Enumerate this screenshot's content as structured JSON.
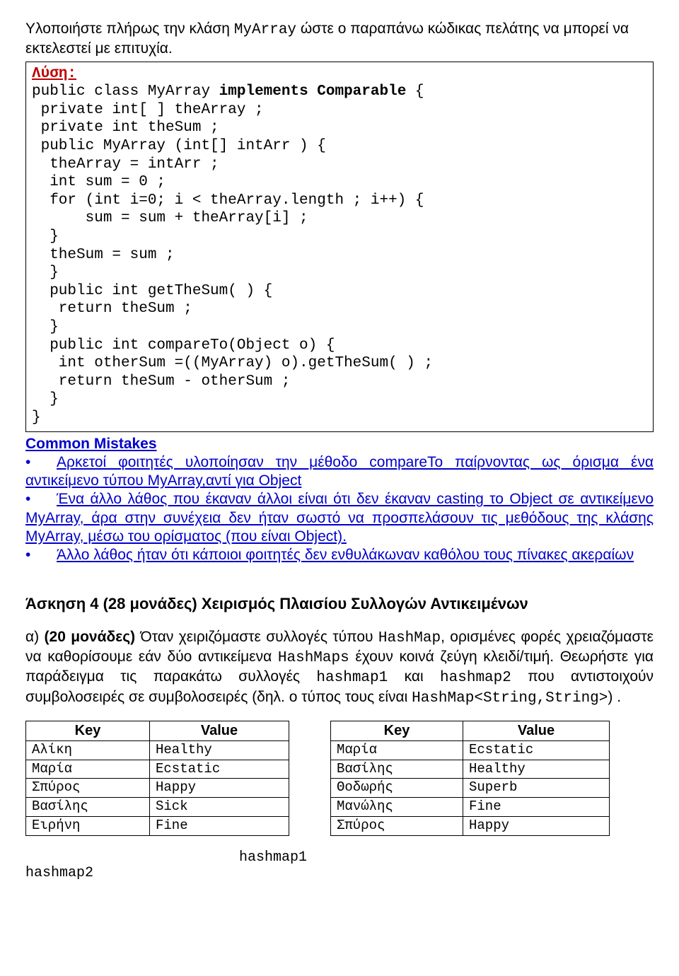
{
  "intro_pre": "Υλοποιήστε πλήρως την κλάση ",
  "intro_class": "MyArray",
  "intro_post": " ώστε ο παραπάνω κώδικας πελάτης να μπορεί να εκτελεστεί με επιτυχία.",
  "lysi": "Λύση:",
  "code_lines": [
    {
      "t": "public class MyArray ",
      "kw": "implements Comparable",
      "rest": " {"
    },
    {
      "t": " private int[ ] theArray ;"
    },
    {
      "t": " private int theSum ;"
    },
    {
      "t": " public MyArray (int[] intArr ) {"
    },
    {
      "t": "  theArray = intArr ;"
    },
    {
      "t": "  int sum = 0 ;"
    },
    {
      "t": "  for (int i=0; i < theArray.length ; i++) {"
    },
    {
      "t": "      sum = sum + theArray[i] ;"
    },
    {
      "t": "  }"
    },
    {
      "t": "  theSum = sum ;"
    },
    {
      "t": "  }"
    },
    {
      "t": "  public int getTheSum( ) {"
    },
    {
      "t": "   return theSum ;"
    },
    {
      "t": "  }"
    },
    {
      "t": "  public int compareTo(Object o) {"
    },
    {
      "t": "   int otherSum =((MyArray) o).getTheSum( ) ;"
    },
    {
      "t": "   return theSum - otherSum ;"
    },
    {
      "t": "  }"
    },
    {
      "t": "}"
    }
  ],
  "mistakes_title": "Common Mistakes",
  "mistakes": [
    "Αρκετοί φοιτητές υλοποίησαν την μέθοδο compareTo παίρνοντας ως όρισμα ένα αντικείμενο τύπου MyArray,αντί για Object",
    "Ένα άλλο λάθος που έκαναν άλλοι είναι ότι δεν έκαναν casting το Object σε αντικείμενο MyArray, άρα στην συνέχεια δεν ήταν σωστό να προσπελάσουν τις μεθόδους της κλάσης MyArray, μέσω του ορίσματος (που είναι Object).",
    "Άλλο λάθος ήταν ότι κάποιοι φοιτητές δεν ενθυλάκωναν καθόλου τους πίνακες ακεραίων"
  ],
  "h4": "Άσκηση 4 (28 μονάδες) Χειρισμός Πλαισίου Συλλογών Αντικειμένων",
  "para_a_pre": "α) ",
  "para_a_bold": "(20 μονάδες)",
  "para_a_1": " Όταν χειριζόμαστε συλλογές τύπου ",
  "para_a_hm": "HashMap",
  "para_a_2": ", ορισμένες φορές χρειαζόμαστε να καθορίσουμε εάν δύο αντικείμενα ",
  "para_a_hms": "HashMaps",
  "para_a_3": " έχουν κοινά ζεύγη κλειδί/τιμή. Θεωρήστε για παράδειγμα τις παρακάτω συλλογές ",
  "para_a_h1": "hashmap1",
  "para_a_4": " και ",
  "para_a_h2": "hashmap2",
  "para_a_5": " που αντιστοιχούν συμβολοσειρές σε συμβολοσειρές (δηλ. ο τύπος τους είναι ",
  "para_a_type": "HashMap<String,String>",
  "para_a_6": ") .",
  "table1": {
    "headers": [
      "Key",
      "Value"
    ],
    "rows": [
      [
        "Αλίκη",
        "Healthy"
      ],
      [
        "Μαρία",
        "Ecstatic"
      ],
      [
        "Σπύρος",
        "Happy"
      ],
      [
        "Βασίλης",
        "Sick"
      ],
      [
        "Ειρήνη",
        "Fine"
      ]
    ]
  },
  "table2": {
    "headers": [
      "Key",
      "Value"
    ],
    "rows": [
      [
        "Μαρία",
        "Ecstatic"
      ],
      [
        "Βασίλης",
        "Healthy"
      ],
      [
        "Θοδωρής",
        "Superb"
      ],
      [
        "Μανώλης",
        "Fine"
      ],
      [
        "Σπύρος",
        "Happy"
      ]
    ]
  },
  "hashmap1_label": "hashmap1",
  "hashmap2_label": "hashmap2"
}
